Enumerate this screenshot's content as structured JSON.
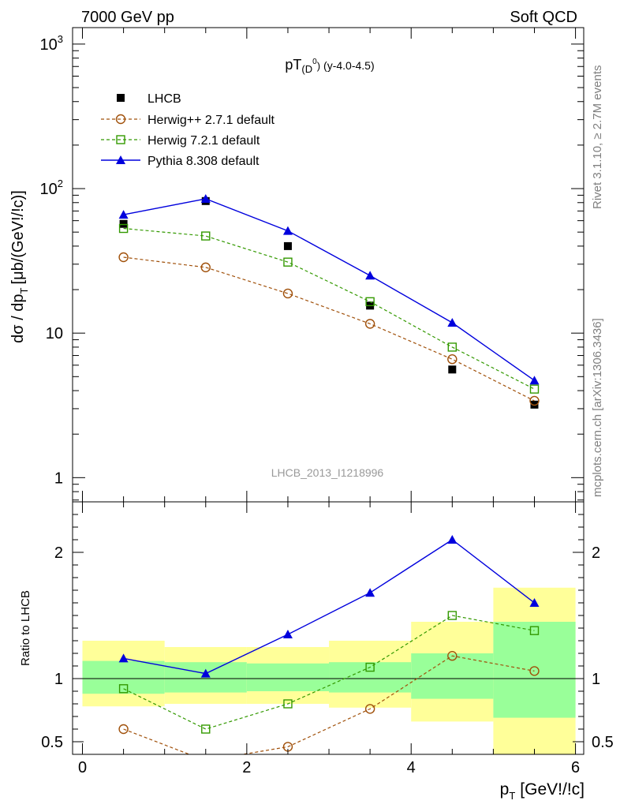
{
  "header": {
    "left": "7000 GeV pp",
    "right": "Soft QCD"
  },
  "side_text": {
    "rivet": "Rivet 3.1.10, ≥ 2.7M events",
    "source": "mcplots.cern.ch [arXiv:1306.3436]"
  },
  "chart_data": [
    {
      "type": "scatter",
      "panel": "main",
      "title_main": "pT",
      "title_paren": "(D",
      "title_sup": "0",
      "title_paren_close": ")",
      "title_tail": "(y-4.0-4.5)",
      "analysis_label": "LHCB_2013_I1218996",
      "ylabel": "dσ / dp",
      "ylabel_sub": "T",
      "ylabel_unit": "[μb/(GeV!/!c)]",
      "yscale": "log",
      "ylim": [
        0.68,
        1300
      ],
      "xlim": [
        -0.12,
        6.1
      ],
      "ytick_labels": [
        "1",
        "10",
        "10",
        "10"
      ],
      "ytick_sups": [
        "",
        "",
        "2",
        "3"
      ],
      "x": [
        0.5,
        1.5,
        2.5,
        3.5,
        4.5,
        5.5
      ],
      "series": [
        {
          "name": "LHCB",
          "values": [
            57,
            82,
            40,
            15.5,
            5.6,
            3.2
          ],
          "color": "#000000",
          "marker": "square-filled"
        },
        {
          "name": "Herwig++ 2.7.1 default",
          "values": [
            33.5,
            28.5,
            18.8,
            11.6,
            6.6,
            3.4
          ],
          "color": "#a0500a",
          "marker": "circle-open"
        },
        {
          "name": "Herwig 7.2.1 default",
          "values": [
            53,
            47,
            31,
            16.5,
            8.0,
            4.1
          ],
          "color": "#339900",
          "marker": "square-open"
        },
        {
          "name": "Pythia 8.308 default",
          "values": [
            66,
            85,
            51,
            25,
            11.8,
            4.7
          ],
          "color": "#0000dd",
          "marker": "triangle-filled"
        }
      ],
      "legend_position": "top-left"
    },
    {
      "type": "line",
      "panel": "ratio",
      "ylabel": "Ratio to LHCB",
      "xlabel": "p",
      "xlabel_sub": "T",
      "xlabel_unit": "[GeV!/!c]",
      "ylim": [
        0.4,
        2.4
      ],
      "xlim": [
        -0.12,
        6.1
      ],
      "xtick_labels": [
        "0",
        "2",
        "4",
        "6"
      ],
      "ytick_labels": [
        "0.5",
        "1",
        "2"
      ],
      "bins": [
        [
          0,
          1
        ],
        [
          1,
          2
        ],
        [
          2,
          3
        ],
        [
          3,
          4
        ],
        [
          4,
          5
        ],
        [
          5,
          6
        ]
      ],
      "band_outer": [
        [
          0.78,
          1.3
        ],
        [
          0.8,
          1.25
        ],
        [
          0.8,
          1.25
        ],
        [
          0.77,
          1.3
        ],
        [
          0.66,
          1.45
        ],
        [
          0.37,
          1.72
        ]
      ],
      "band_inner": [
        [
          0.88,
          1.14
        ],
        [
          0.89,
          1.13
        ],
        [
          0.9,
          1.12
        ],
        [
          0.89,
          1.13
        ],
        [
          0.84,
          1.2
        ],
        [
          0.69,
          1.45
        ]
      ],
      "x": [
        0.5,
        1.5,
        2.5,
        3.5,
        4.5,
        5.5
      ],
      "series": [
        {
          "name": "Herwig++ 2.7.1 default",
          "values": [
            0.6,
            0.35,
            0.46,
            0.76,
            1.18,
            1.06
          ],
          "color": "#a0500a"
        },
        {
          "name": "Herwig 7.2.1 default",
          "values": [
            0.92,
            0.6,
            0.8,
            1.09,
            1.5,
            1.38
          ],
          "color": "#339900"
        },
        {
          "name": "Pythia 8.308 default",
          "values": [
            1.16,
            1.04,
            1.35,
            1.68,
            2.1,
            1.6
          ],
          "color": "#0000dd"
        }
      ],
      "reference_line": 1
    }
  ]
}
